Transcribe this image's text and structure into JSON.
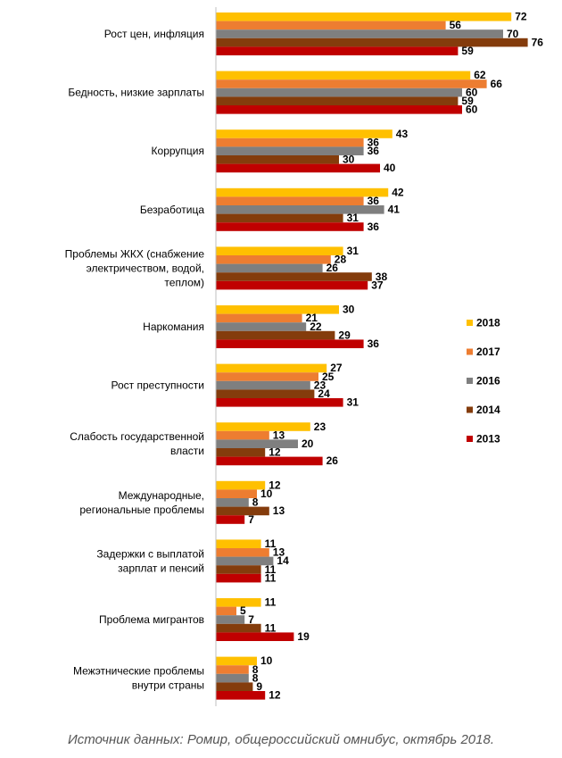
{
  "chart_data": {
    "type": "bar",
    "orientation": "horizontal",
    "categories": [
      [
        "Рост цен, инфляция"
      ],
      [
        "Бедность, низкие зарплаты"
      ],
      [
        "Коррупция"
      ],
      [
        "Безработица"
      ],
      [
        "Проблемы ЖКХ (снабжение",
        "электричеством, водой,",
        "теплом)"
      ],
      [
        "Наркомания"
      ],
      [
        "Рост преступности"
      ],
      [
        "Слабость государственной",
        "власти"
      ],
      [
        "Международные,",
        "региональные проблемы"
      ],
      [
        "Задержки с выплатой",
        "зарплат и пенсий"
      ],
      [
        "Проблема мигрантов"
      ],
      [
        "Межэтнические проблемы",
        "внутри страны"
      ]
    ],
    "series": [
      {
        "name": "2018",
        "color": "#FFC000",
        "values": [
          72,
          62,
          43,
          42,
          31,
          30,
          27,
          23,
          12,
          11,
          11,
          10
        ]
      },
      {
        "name": "2017",
        "color": "#ED7D31",
        "values": [
          56,
          66,
          36,
          36,
          28,
          21,
          25,
          13,
          10,
          13,
          5,
          8
        ]
      },
      {
        "name": "2016",
        "color": "#7F7F7F",
        "values": [
          70,
          60,
          36,
          41,
          26,
          22,
          23,
          20,
          8,
          14,
          7,
          8
        ]
      },
      {
        "name": "2014",
        "color": "#843C0C",
        "values": [
          76,
          59,
          30,
          31,
          38,
          29,
          24,
          12,
          13,
          11,
          11,
          9
        ]
      },
      {
        "name": "2013",
        "color": "#C00000",
        "values": [
          59,
          60,
          40,
          36,
          37,
          36,
          31,
          26,
          7,
          11,
          19,
          12
        ]
      }
    ],
    "xlim": [
      0,
      80
    ],
    "legend_position": "right",
    "grid": false
  },
  "footer": "Источник данных: Ромир, общероссийский омнибус, октябрь 2018."
}
